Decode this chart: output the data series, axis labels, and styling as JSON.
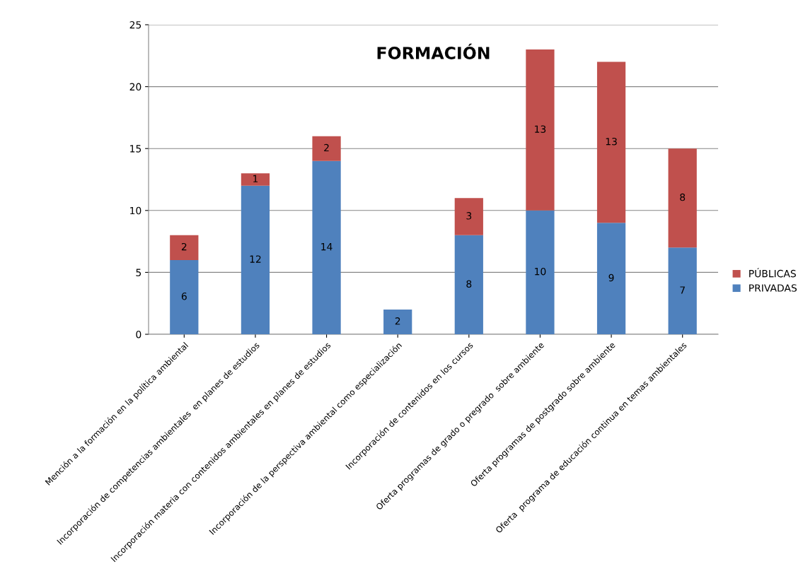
{
  "chart_data": {
    "type": "bar",
    "title": "FORMACIÓN",
    "stacked": true,
    "categories": [
      "Mención a la formación en la política ambiental",
      "Incorporación de competencias ambientales  en planes de estudios",
      "Incorporación materia con contenidos ambientales en planes de estudios",
      "Incorporación de la perspectiva ambiental como especialización",
      "Incorporación de contenidos en los cursos",
      "Oferta programas de grado o pregrado  sobre ambiente",
      "Oferta programas de postgrado sobre ambiente",
      "Oferta  programa de educación continua en temas ambientales"
    ],
    "series": [
      {
        "name": "PRIVADAS",
        "color": "#4f81bd",
        "values": [
          6,
          12,
          14,
          2,
          8,
          10,
          9,
          7
        ]
      },
      {
        "name": "PÚBLICAS",
        "color": "#c0504d",
        "values": [
          2,
          1,
          2,
          null,
          3,
          13,
          13,
          8
        ]
      }
    ],
    "ylim": [
      0,
      25
    ],
    "yticks": [
      0,
      5,
      10,
      15,
      20,
      25
    ],
    "grid": "y",
    "legend": "right",
    "data_labels": true
  }
}
